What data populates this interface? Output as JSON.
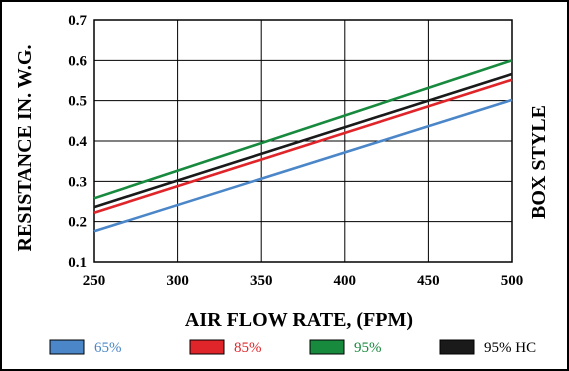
{
  "chart_data": {
    "type": "line",
    "xlabel": "AIR FLOW RATE, (FPM)",
    "ylabel": "RESISTANCE IN. W.G.",
    "right_label": "BOX STYLE",
    "xlim": [
      250,
      500
    ],
    "ylim": [
      0.1,
      0.7
    ],
    "x_ticks": [
      250,
      300,
      350,
      400,
      450,
      500
    ],
    "y_ticks": [
      "0.1",
      "0.2",
      "0.3",
      "0.4",
      "0.5",
      "0.6",
      "0.7"
    ],
    "grid": true,
    "legend_position": "bottom",
    "series": [
      {
        "name": "65%",
        "color": "#4a86c8",
        "x": [
          250,
          500
        ],
        "y": [
          0.176,
          0.502
        ]
      },
      {
        "name": "85%",
        "color": "#e0252a",
        "x": [
          250,
          500
        ],
        "y": [
          0.222,
          0.552
        ]
      },
      {
        "name": "95%",
        "color": "#178a3e",
        "x": [
          250,
          500
        ],
        "y": [
          0.258,
          0.6
        ]
      },
      {
        "name": "95% HC",
        "color": "#1a1a1a",
        "x": [
          250,
          500
        ],
        "y": [
          0.236,
          0.566
        ]
      }
    ]
  }
}
